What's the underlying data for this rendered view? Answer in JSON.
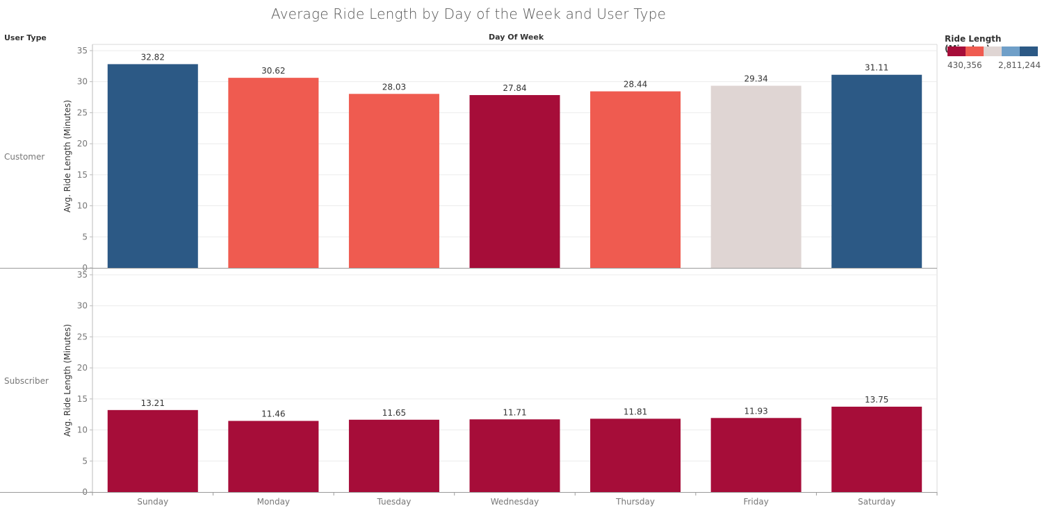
{
  "title": "Average Ride Length by Day of the Week and User Type",
  "row_header": "User Type",
  "column_header": "Day Of Week",
  "legend": {
    "title": "Ride Length (Minutes)",
    "min_label": "430,356",
    "max_label": "2,811,244",
    "swatches": [
      "#a60d39",
      "#ef5b50",
      "#dfd5d3",
      "#6f9fc8",
      "#2c5985"
    ]
  },
  "chart_data": {
    "type": "bar",
    "categories": [
      "Sunday",
      "Monday",
      "Tuesday",
      "Wednesday",
      "Thursday",
      "Friday",
      "Saturday"
    ],
    "ylabel": "Avg. Ride Length (Minutes)",
    "ylim": [
      0,
      36
    ],
    "yticks": [
      0,
      5,
      10,
      15,
      20,
      25,
      30,
      35
    ],
    "grid": true,
    "legend_position": "top-right",
    "panels": [
      {
        "row": "Customer",
        "values": [
          32.82,
          30.62,
          28.03,
          27.84,
          28.44,
          29.34,
          31.11
        ],
        "labels": [
          "32.82",
          "30.62",
          "28.03",
          "27.84",
          "28.44",
          "29.34",
          "31.11"
        ],
        "colors": [
          "#2c5985",
          "#ef5b50",
          "#ef5b50",
          "#a60d39",
          "#ef5b50",
          "#dfd5d3",
          "#2c5985"
        ]
      },
      {
        "row": "Subscriber",
        "values": [
          13.21,
          11.46,
          11.65,
          11.71,
          11.81,
          11.93,
          13.75
        ],
        "labels": [
          "13.21",
          "11.46",
          "11.65",
          "11.71",
          "11.81",
          "11.93",
          "13.75"
        ],
        "colors": [
          "#a60d39",
          "#a60d39",
          "#a60d39",
          "#a60d39",
          "#a60d39",
          "#a60d39",
          "#a60d39"
        ]
      }
    ]
  }
}
